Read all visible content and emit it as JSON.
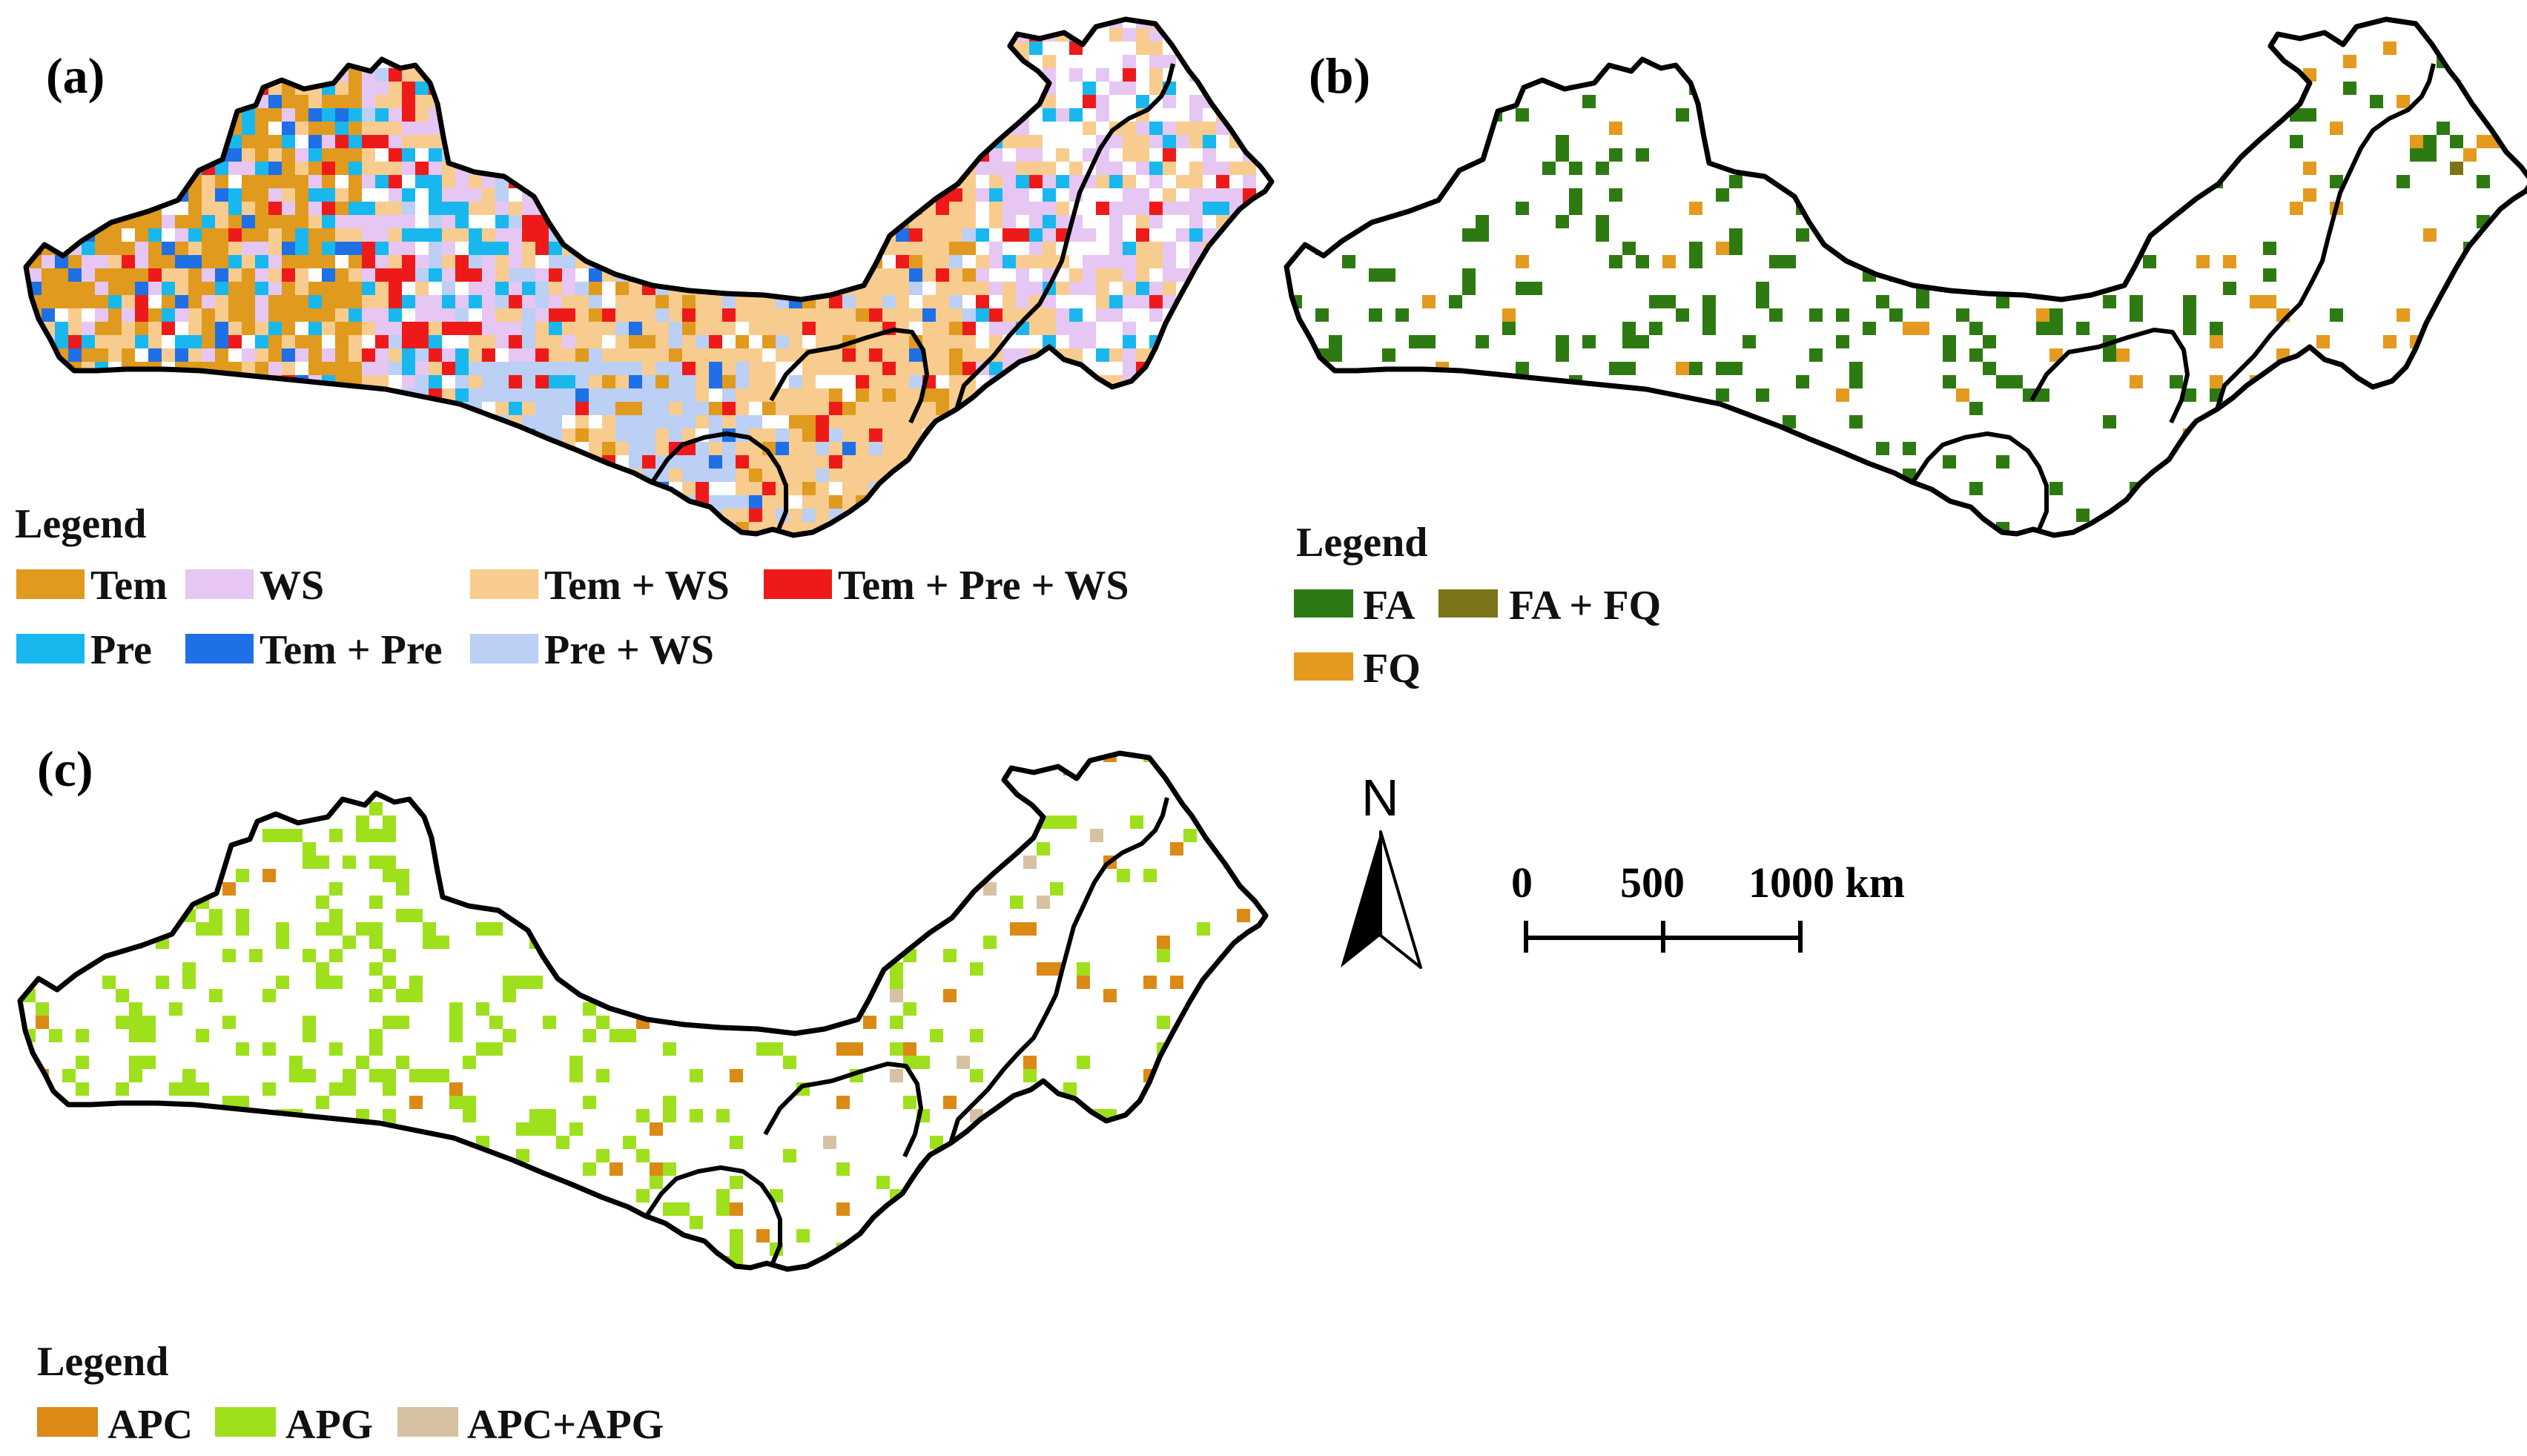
{
  "panels": [
    {
      "id": "a",
      "label": "(a)",
      "legend_title": "Legend",
      "legend": [
        {
          "label": "Tem",
          "color": "#E09A1E"
        },
        {
          "label": "WS",
          "color": "#E6C6F2"
        },
        {
          "label": "Tem + WS",
          "color": "#F8CC8E"
        },
        {
          "label": "Tem + Pre + WS",
          "color": "#EE1A1A"
        },
        {
          "label": "Pre",
          "color": "#18B8EE"
        },
        {
          "label": "Tem + Pre",
          "color": "#1F6FE6"
        },
        {
          "label": "Pre + WS",
          "color": "#BCCFF4"
        }
      ]
    },
    {
      "id": "b",
      "label": "(b)",
      "legend_title": "Legend",
      "legend": [
        {
          "label": "FA",
          "color": "#2E7A12"
        },
        {
          "label": "FA + FQ",
          "color": "#7C7418"
        },
        {
          "label": "FQ",
          "color": "#E39A1E"
        }
      ]
    },
    {
      "id": "c",
      "label": "(c)",
      "legend_title": "Legend",
      "legend": [
        {
          "label": "APC",
          "color": "#DB8A16"
        },
        {
          "label": "APG",
          "color": "#9EE01C"
        },
        {
          "label": "APC+APG",
          "color": "#D6C2A2"
        }
      ]
    }
  ],
  "north_arrow": {
    "label": "N"
  },
  "scale_bar": {
    "ticks": [
      "0",
      "500",
      "1000 km"
    ]
  }
}
